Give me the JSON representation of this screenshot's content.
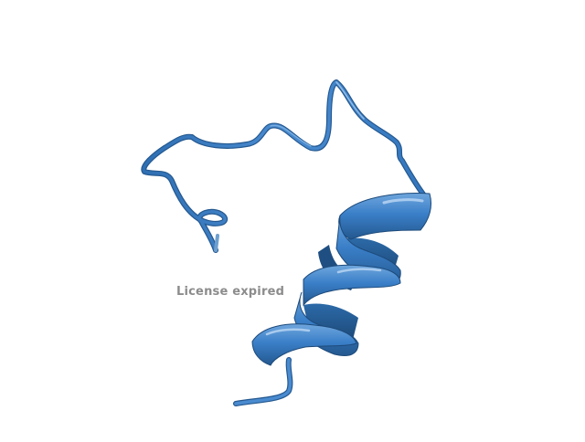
{
  "viewer": {
    "license_notice": "License expired",
    "ribbon_color": "#3a7fc8",
    "ribbon_dark": "#24588f",
    "ribbon_light": "#6fa6dd",
    "background": "#ffffff"
  }
}
